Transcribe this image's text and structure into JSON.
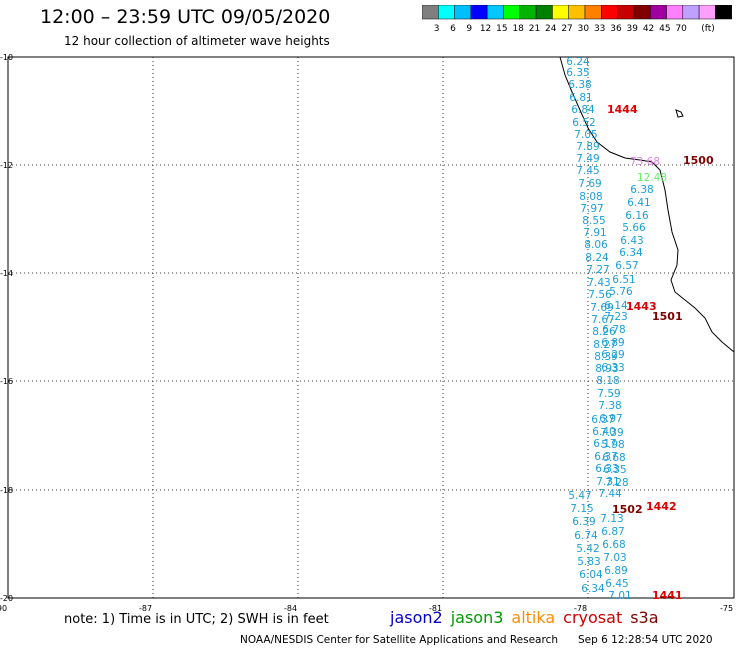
{
  "header": {
    "title": "12:00 – 23:59 UTC 09/05/2020",
    "subtitle": "12 hour collection of altimeter wave heights"
  },
  "colorbar": {
    "colors": [
      "#7f7f7f",
      "#00ffff",
      "#00bfff",
      "#0000ff",
      "#00c8ff",
      "#00ff00",
      "#00b400",
      "#008000",
      "#ffff00",
      "#ffc000",
      "#ff8000",
      "#ff0000",
      "#c80000",
      "#800000",
      "#a000a0",
      "#ff80ff",
      "#c0a0ff",
      "#ffa0ff",
      "#000000"
    ],
    "labels": [
      "3",
      "6",
      "9",
      "12",
      "15",
      "18",
      "21",
      "24",
      "27",
      "30",
      "33",
      "36",
      "39",
      "42",
      "45",
      "70",
      "(ft)"
    ]
  },
  "axes": {
    "lon_labels": [
      "-90",
      "-87",
      "-84",
      "-81",
      "-78",
      "-75"
    ],
    "lat_labels": [
      "-10",
      "-12",
      "-14",
      "-16",
      "-18",
      "-20"
    ]
  },
  "swh_values": [
    [
      "6.24",
      578,
      65
    ],
    [
      "6.35",
      578,
      76
    ],
    [
      "6.38",
      580,
      88
    ],
    [
      "6.81",
      581,
      101
    ],
    [
      "6.84",
      583,
      113
    ],
    [
      "6.52",
      584,
      126
    ],
    [
      "7.05",
      586,
      138
    ],
    [
      "7.89",
      588,
      150
    ],
    [
      "7.49",
      588,
      162
    ],
    [
      "7.45",
      588,
      174
    ],
    [
      "7.69",
      590,
      187
    ],
    [
      "8.08",
      591,
      200
    ],
    [
      "7.97",
      592,
      212
    ],
    [
      "8.55",
      594,
      224
    ],
    [
      "7.91",
      595,
      236
    ],
    [
      "8.06",
      596,
      248
    ],
    [
      "8.24",
      597,
      261
    ],
    [
      "7.27",
      598,
      273
    ],
    [
      "7.43",
      599,
      286
    ],
    [
      "7.56",
      600,
      298
    ],
    [
      "7.69",
      602,
      311
    ],
    [
      "7.67",
      603,
      323
    ],
    [
      "8.26",
      604,
      335
    ],
    [
      "8.27",
      605,
      348
    ],
    [
      "8.39",
      606,
      360
    ],
    [
      "8.93",
      607,
      372
    ],
    [
      "8.18",
      608,
      384
    ],
    [
      "7.59",
      609,
      397
    ],
    [
      "7.38",
      610,
      409
    ],
    [
      "6.97",
      611,
      422
    ],
    [
      "7.39",
      612,
      436
    ],
    [
      "5.98",
      613,
      448
    ],
    [
      "6.68",
      614,
      461
    ],
    [
      "6.35",
      615,
      473
    ],
    [
      "7.28",
      617,
      486
    ],
    [
      "5.47",
      580,
      499
    ],
    [
      "7.15",
      582,
      512
    ],
    [
      "6.39",
      584,
      525
    ],
    [
      "6.74",
      586,
      539
    ],
    [
      "5.42",
      588,
      552
    ],
    [
      "5.83",
      589,
      565
    ],
    [
      "6.04",
      591,
      578
    ],
    [
      "6.34",
      593,
      592
    ],
    [
      "7.13",
      612,
      522
    ],
    [
      "6.87",
      613,
      535
    ],
    [
      "6.68",
      614,
      548
    ],
    [
      "7.03",
      615,
      561
    ],
    [
      "6.89",
      616,
      574
    ],
    [
      "6.45",
      617,
      587
    ],
    [
      "7.01",
      620,
      599
    ],
    [
      "7.44",
      610,
      497
    ],
    [
      "7.31",
      608,
      485
    ],
    [
      "6.33",
      607,
      472
    ],
    [
      "6.37",
      606,
      460
    ],
    [
      "6.17",
      605,
      447
    ],
    [
      "6.40",
      604,
      435
    ],
    [
      "6.37",
      603,
      423
    ],
    [
      "6.33",
      613,
      371
    ],
    [
      "6.29",
      613,
      358
    ],
    [
      "6.89",
      613,
      346
    ],
    [
      "6.78",
      614,
      333
    ],
    [
      "7.23",
      616,
      320
    ],
    [
      "5.76",
      621,
      295
    ],
    [
      "6.51",
      624,
      283
    ],
    [
      "6.57",
      627,
      269
    ],
    [
      "6.34",
      631,
      256
    ],
    [
      "6.43",
      632,
      244
    ],
    [
      "5.66",
      634,
      231
    ],
    [
      "6.16",
      637,
      219
    ],
    [
      "6.41",
      639,
      206
    ],
    [
      "6.38",
      642,
      193
    ],
    [
      "6.14",
      616,
      309
    ]
  ],
  "swh_green": [
    [
      "12.48",
      652,
      181
    ]
  ],
  "swh_pink": [
    [
      "73.68",
      645,
      165
    ]
  ],
  "pass_labels": [
    [
      "1444",
      607,
      113,
      "#dd0000"
    ],
    [
      "1500",
      683,
      164,
      "#800000"
    ],
    [
      "1443",
      626,
      310,
      "#dd0000"
    ],
    [
      "1501",
      652,
      320,
      "#800000"
    ],
    [
      "1502",
      612,
      513,
      "#800000"
    ],
    [
      "1442",
      646,
      510,
      "#dd0000"
    ],
    [
      "1441",
      652,
      599,
      "#dd0000"
    ]
  ],
  "note": "note:  1) Time is in UTC;  2) SWH is in feet",
  "legend": [
    {
      "name": "jason2",
      "color": "#0000cc"
    },
    {
      "name": "jason3",
      "color": "#009900"
    },
    {
      "name": "altika",
      "color": "#ff8c00"
    },
    {
      "name": "cryosat",
      "color": "#cc0000"
    },
    {
      "name": "s3a",
      "color": "#800000"
    }
  ],
  "credit": "NOAA/NESDIS Center for Satellite Applications and Research",
  "credit_time": "Sep  6 12:28:54 UTC 2020"
}
